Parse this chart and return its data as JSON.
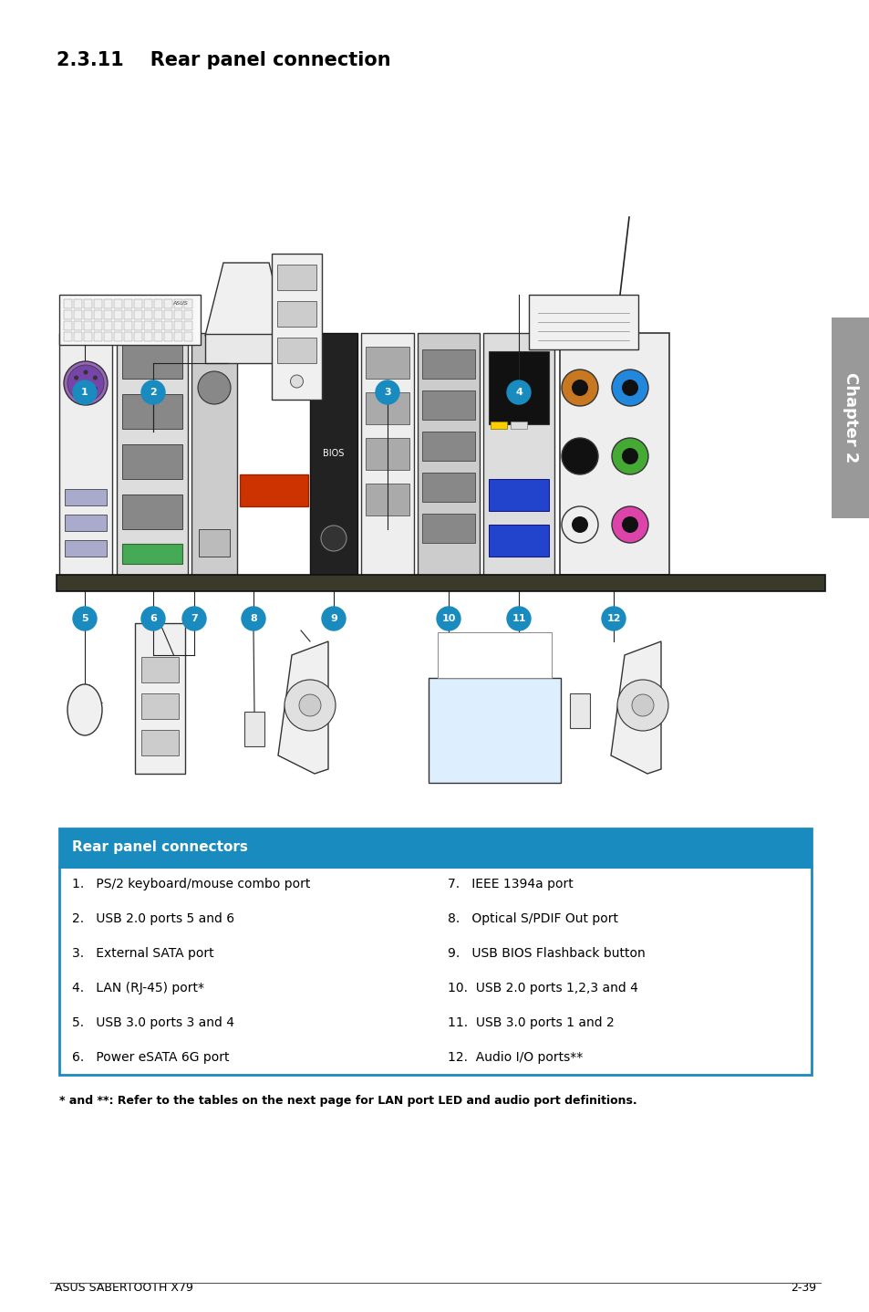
{
  "title": "2.3.11    Rear panel connection",
  "title_fontsize": 15,
  "background_color": "#ffffff",
  "table_header": "Rear panel connectors",
  "table_header_bg": "#1a8bbf",
  "table_header_color": "#ffffff",
  "table_border_color": "#1a8bbf",
  "table_row_bg1": "#ffffff",
  "table_divider_color": "#cccccc",
  "table_rows": [
    [
      "1.   PS/2 keyboard/mouse combo port",
      "7.   IEEE 1394a port"
    ],
    [
      "2.   USB 2.0 ports 5 and 6",
      "8.   Optical S/PDIF Out port"
    ],
    [
      "3.   External SATA port",
      "9.   USB BIOS Flashback button"
    ],
    [
      "4.   LAN (RJ-45) port*",
      "10.  USB 2.0 ports 1,2,3 and 4"
    ],
    [
      "5.   USB 3.0 ports 3 and 4",
      "11.  USB 3.0 ports 1 and 2"
    ],
    [
      "6.   Power eSATA 6G port",
      "12.  Audio I/O ports**"
    ]
  ],
  "footnote": "* and **: Refer to the tables on the next page for LAN port LED and audio port definitions.",
  "footer_left": "ASUS SABERTOOTH X79",
  "footer_right": "2-39",
  "chapter_label": "Chapter 2",
  "chapter_bg": "#999999",
  "chapter_color": "#ffffff",
  "bubble_color": "#1a8bbf",
  "line_color": "#111111"
}
